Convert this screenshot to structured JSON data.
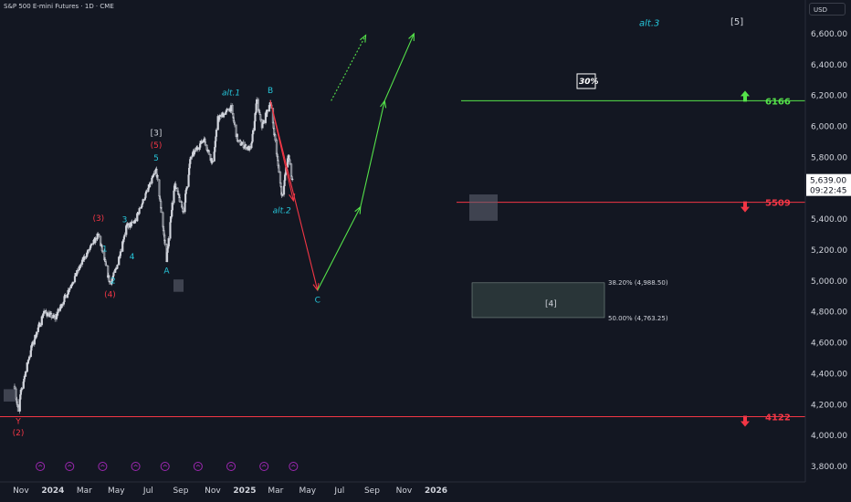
{
  "symbol_title": "S&P 500 E-mini Futures · 1D · CME",
  "currency": "USD",
  "colors": {
    "background": "#131722",
    "candle": "#d1d4dc",
    "label_teal": "#26c6da",
    "label_red": "#f23645",
    "line_green": "#55e34a",
    "line_red": "#f23645",
    "text": "#d1d4dc",
    "fib_box": "#3d4f4a"
  },
  "chart_data": {
    "type": "candlestick",
    "ylim": [
      3700,
      6800
    ],
    "x_tick_labels": [
      "Nov",
      "2024",
      "Mar",
      "May",
      "Jul",
      "Sep",
      "Nov",
      "2025",
      "Mar",
      "May",
      "Jul",
      "Sep",
      "Nov",
      "2026"
    ],
    "y_tick_labels": [
      "6,600.00",
      "6,400.00",
      "6,200.00",
      "6,000.00",
      "5,800.00",
      "5,400.00",
      "5,200.00",
      "5,000.00",
      "4,800.00",
      "4,600.00",
      "4,400.00",
      "4,200.00",
      "4,000.00",
      "3,800.00"
    ],
    "y_ticks": [
      6600,
      6400,
      6200,
      6000,
      5800,
      5400,
      5200,
      5000,
      4800,
      4600,
      4400,
      4200,
      4000,
      3800
    ],
    "price_path": [
      [
        "2023-10-20",
        4320
      ],
      [
        "2023-10-27",
        4150
      ],
      [
        "2023-11-01",
        4280
      ],
      [
        "2023-11-20",
        4560
      ],
      [
        "2023-12-15",
        4800
      ],
      [
        "2024-01-05",
        4760
      ],
      [
        "2024-02-01",
        4950
      ],
      [
        "2024-03-01",
        5150
      ],
      [
        "2024-03-28",
        5300
      ],
      [
        "2024-04-19",
        4980
      ],
      [
        "2024-05-01",
        5080
      ],
      [
        "2024-05-20",
        5350
      ],
      [
        "2024-06-05",
        5380
      ],
      [
        "2024-06-25",
        5550
      ],
      [
        "2024-07-16",
        5720
      ],
      [
        "2024-07-25",
        5480
      ],
      [
        "2024-08-05",
        5140
      ],
      [
        "2024-08-20",
        5630
      ],
      [
        "2024-09-06",
        5450
      ],
      [
        "2024-09-20",
        5800
      ],
      [
        "2024-10-15",
        5920
      ],
      [
        "2024-11-01",
        5760
      ],
      [
        "2024-11-11",
        6050
      ],
      [
        "2024-12-06",
        6120
      ],
      [
        "2024-12-19",
        5900
      ],
      [
        "2025-01-13",
        5850
      ],
      [
        "2025-01-24",
        6160
      ],
      [
        "2025-02-03",
        6000
      ],
      [
        "2025-02-19",
        6160
      ],
      [
        "2025-03-13",
        5550
      ],
      [
        "2025-03-18",
        5650
      ],
      [
        "2025-03-25",
        5820
      ],
      [
        "2025-04-01",
        5660
      ],
      [
        "2025-04-03",
        5639
      ]
    ],
    "last_price": "5,639.00",
    "countdown": "09:22:45",
    "levels": [
      {
        "label": "6166",
        "value": 6166,
        "direction": "up"
      },
      {
        "label": "5509",
        "value": 5509,
        "direction": "down"
      },
      {
        "label": "4122",
        "value": 4122,
        "direction": "down"
      }
    ],
    "fib_zone": {
      "top_label": "38.20% (4,988.50)",
      "bottom_label": "50.00% (4,763.25)",
      "top": 4988.5,
      "bottom": 4763.25,
      "wave_label": "[4]"
    },
    "projections": {
      "red_path": [
        [
          "2025-02-19",
          6166
        ],
        [
          "2025-05-20",
          4940
        ]
      ],
      "green_path": [
        [
          "2025-05-20",
          4940
        ],
        [
          "2025-08-10",
          5480
        ],
        [
          "2025-09-25",
          6166
        ],
        [
          "2025-11-20",
          6600
        ]
      ],
      "dotted_path": [
        [
          "2025-06-15",
          6166
        ],
        [
          "2025-08-20",
          6590
        ]
      ],
      "probability_label": "30%",
      "alt3_label": "alt.3",
      "wave5_label": "[5]"
    },
    "wave_labels": [
      {
        "text": "Y",
        "date": "2023-10-27",
        "price": 4075,
        "color": "red"
      },
      {
        "text": "(2)",
        "date": "2023-10-27",
        "price": 4000,
        "color": "red"
      },
      {
        "text": "(3)",
        "date": "2024-03-28",
        "price": 5390,
        "color": "red"
      },
      {
        "text": "1",
        "date": "2024-04-09",
        "price": 5190,
        "color": "teal"
      },
      {
        "text": "2",
        "date": "2024-04-25",
        "price": 4985,
        "color": "teal"
      },
      {
        "text": "(4)",
        "date": "2024-04-19",
        "price": 4895,
        "color": "red"
      },
      {
        "text": "3",
        "date": "2024-05-17",
        "price": 5380,
        "color": "teal"
      },
      {
        "text": "4",
        "date": "2024-05-31",
        "price": 5140,
        "color": "teal"
      },
      {
        "text": "[3]",
        "date": "2024-07-16",
        "price": 5940,
        "color": "white"
      },
      {
        "text": "(5)",
        "date": "2024-07-16",
        "price": 5860,
        "color": "red"
      },
      {
        "text": "5",
        "date": "2024-07-16",
        "price": 5780,
        "color": "teal"
      },
      {
        "text": "A",
        "date": "2024-08-05",
        "price": 5050,
        "color": "teal"
      },
      {
        "text": "alt.1",
        "date": "2024-12-06",
        "price": 6200,
        "color": "teal"
      },
      {
        "text": "B",
        "date": "2025-02-19",
        "price": 6215,
        "color": "teal"
      },
      {
        "text": "alt.2",
        "date": "2025-03-13",
        "price": 5440,
        "color": "teal"
      },
      {
        "text": "C",
        "date": "2025-05-20",
        "price": 4860,
        "color": "teal"
      }
    ]
  }
}
